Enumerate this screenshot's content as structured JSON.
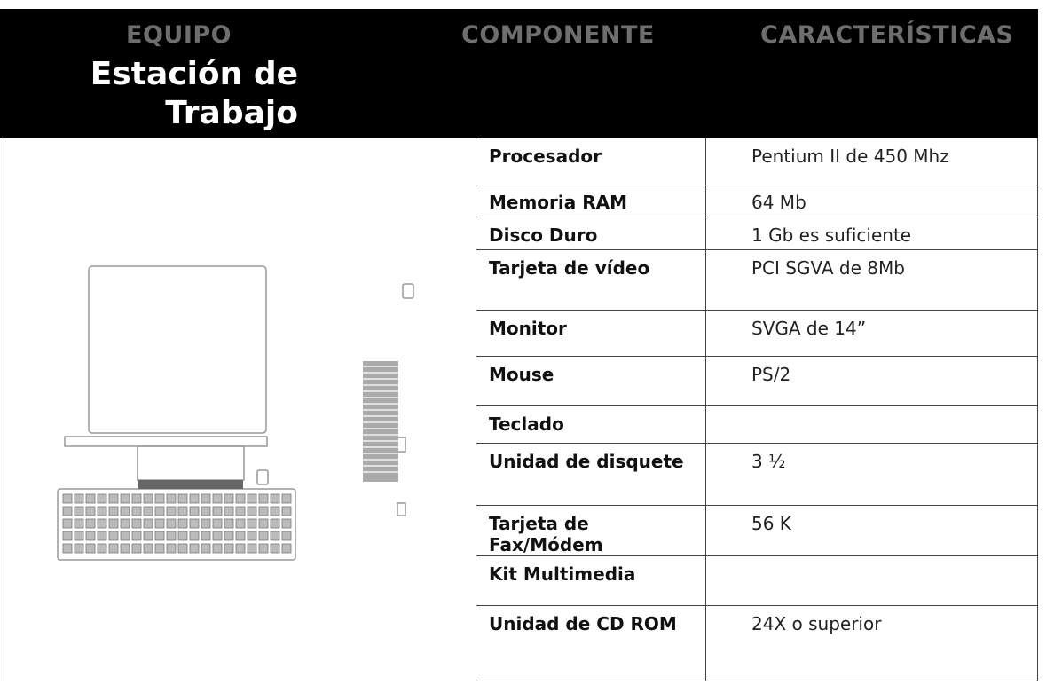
{
  "header": {
    "columns": [
      "EQUIPO",
      "COMPONENTE",
      "CARACTERÍSTICAS"
    ],
    "equipment": "Estación de Trabajo"
  },
  "table": {
    "rows": [
      {
        "component": "Procesador",
        "feature": "Pentium II de 450 Mhz"
      },
      {
        "component": "Memoria RAM",
        "feature": "64 Mb"
      },
      {
        "component": "Disco Duro",
        "feature": "1 Gb es suficiente"
      },
      {
        "component": "Tarjeta de vídeo",
        "feature": "PCI SGVA de 8Mb"
      },
      {
        "component": "Monitor",
        "feature": "SVGA de 14”"
      },
      {
        "component": "Mouse",
        "feature": "PS/2"
      },
      {
        "component": "Teclado"
      },
      {
        "component": "Unidad de disquete",
        "feature": "3 ½"
      },
      {
        "component": "Tarjeta de Fax/Módem",
        "feature": "56 K"
      },
      {
        "component": "Kit Multimedia"
      },
      {
        "component": "Unidad de CD ROM",
        "feature": "24X o superior"
      }
    ]
  }
}
